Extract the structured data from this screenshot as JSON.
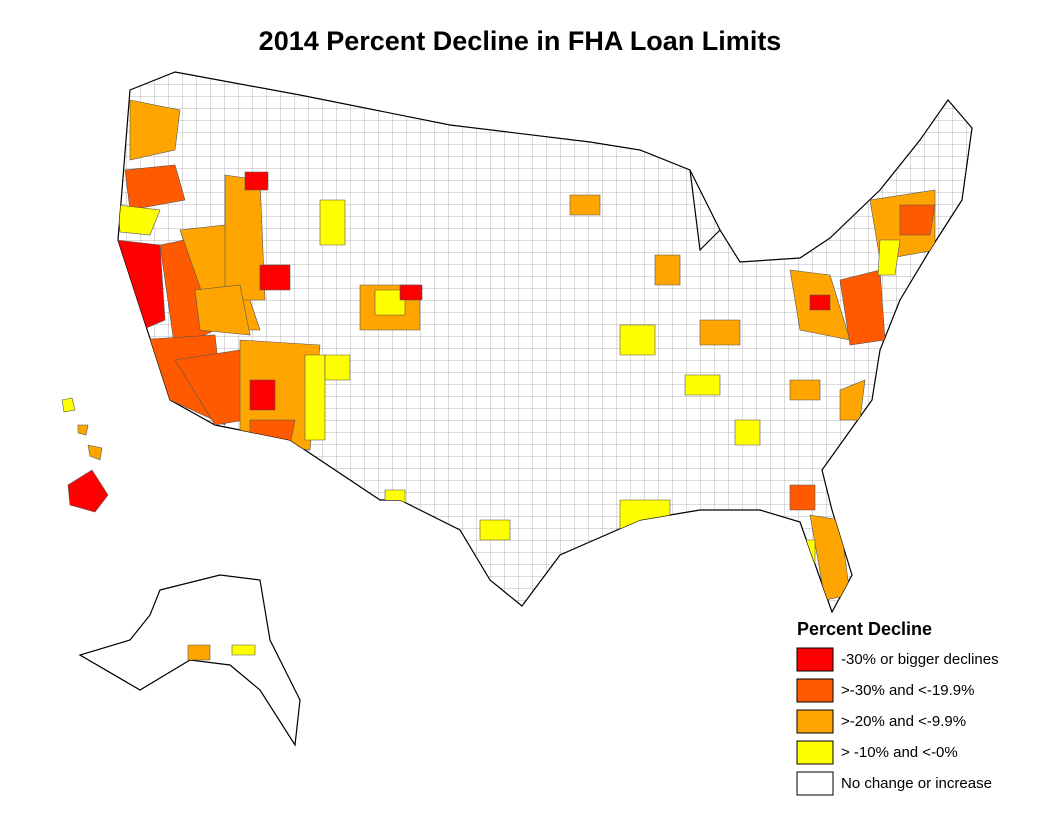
{
  "title": "2014 Percent Decline in FHA Loan Limits",
  "legend": {
    "title": "Percent Decline",
    "items": [
      {
        "label": "-30% or bigger declines",
        "color": "#ff0000"
      },
      {
        "label": ">-30% and <-19.9%",
        "color": "#ff5a00"
      },
      {
        "label": ">-20% and <-9.9%",
        "color": "#ffa500"
      },
      {
        "label": "> -10% and <-0%",
        "color": "#ffff00"
      },
      {
        "label": "No change or increase",
        "color": "#ffffff"
      }
    ]
  }
}
